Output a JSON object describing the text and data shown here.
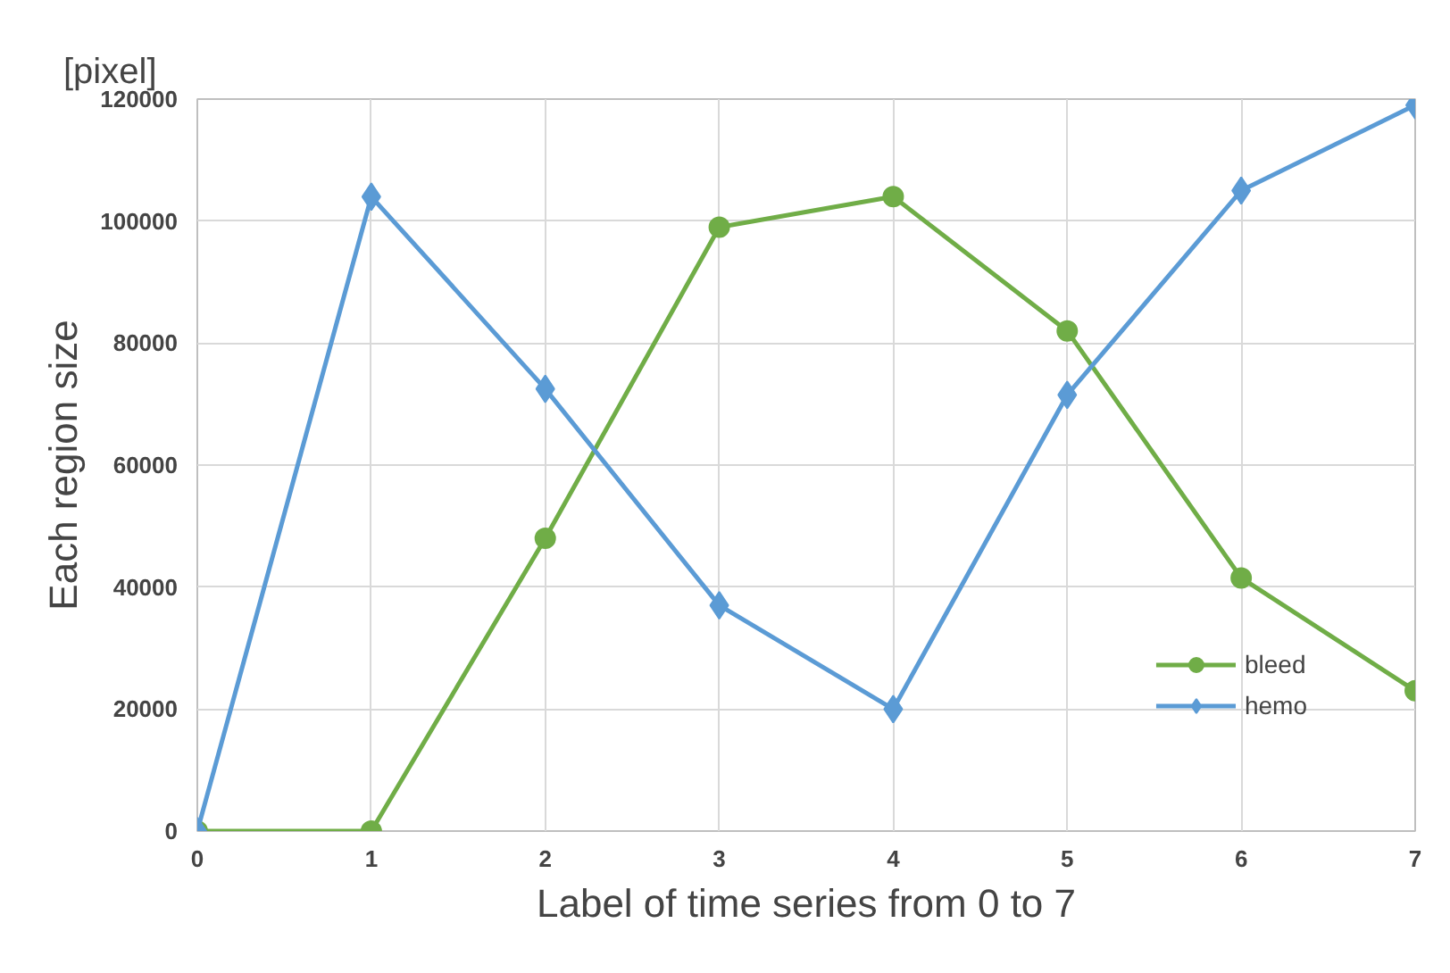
{
  "chart_data": {
    "type": "line",
    "xlabel": "Label of time series from 0 to 7",
    "ylabel": "Each region size",
    "annotations": [
      "[pixel]"
    ],
    "x": [
      0,
      1,
      2,
      3,
      4,
      5,
      6,
      7
    ],
    "xlim": [
      0,
      7
    ],
    "xticks": [
      0,
      1,
      2,
      3,
      4,
      5,
      6,
      7
    ],
    "ylim": [
      0,
      120000
    ],
    "yticks": [
      0,
      20000,
      40000,
      60000,
      80000,
      100000,
      120000
    ],
    "grid": true,
    "legend": "bottom right",
    "line_style": "solid",
    "series": [
      {
        "name": "bleed",
        "color": "#70ad47",
        "marker": "circle",
        "values": [
          0,
          0,
          48000,
          99000,
          104000,
          82000,
          41500,
          23000
        ]
      },
      {
        "name": "hemo",
        "color": "#5b9bd5",
        "marker": "diamond",
        "values": [
          0,
          104000,
          72500,
          37000,
          20000,
          71500,
          105000,
          119000
        ]
      }
    ]
  }
}
